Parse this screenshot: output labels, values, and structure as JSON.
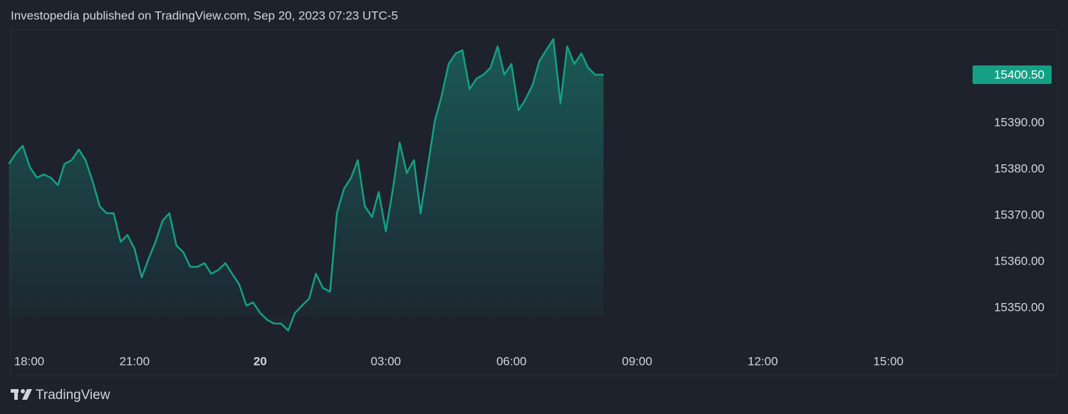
{
  "chart_data": {
    "type": "area",
    "title": "Investopedia published on TradingView.com, Sep 20, 2023 07:23 UTC-5",
    "brand": "TradingView",
    "x": [
      18,
      18.17,
      18.33,
      18.5,
      18.67,
      18.83,
      19,
      19.17,
      19.33,
      19.5,
      19.67,
      19.83,
      20,
      20.17,
      20.33,
      20.5,
      20.67,
      20.83,
      21,
      21.17,
      21.33,
      21.5,
      21.67,
      21.83,
      22,
      22.17,
      22.33,
      22.5,
      22.67,
      22.83,
      23,
      23.17,
      23.33,
      23.5,
      23.67,
      23.83,
      24,
      24.17,
      24.33,
      24.5,
      24.67,
      24.83,
      25,
      25.17,
      25.33,
      25.5,
      25.67,
      25.83,
      26,
      26.17,
      26.33,
      26.5,
      26.67,
      26.83,
      27,
      27.17,
      27.33,
      27.5,
      27.67,
      27.83,
      28,
      28.17,
      28.33,
      28.5,
      28.67,
      28.83,
      29,
      29.17,
      29.33,
      29.5,
      29.67,
      29.83,
      30,
      30.17,
      30.33,
      30.5,
      30.67,
      30.83,
      31,
      31.17,
      31.33,
      31.5,
      31.67,
      31.83,
      32,
      32.2
    ],
    "series": [
      {
        "color": "#14a085",
        "values": [
          15381.2,
          15383.5,
          15385.1,
          15380.5,
          15378.2,
          15378.9,
          15378.2,
          15376.6,
          15381.2,
          15382.0,
          15384.3,
          15382.0,
          15377.4,
          15372.0,
          15370.5,
          15370.5,
          15364.3,
          15365.8,
          15362.8,
          15356.6,
          15360.5,
          15364.3,
          15368.9,
          15370.5,
          15363.5,
          15362.0,
          15358.9,
          15358.9,
          15359.7,
          15357.4,
          15358.2,
          15359.7,
          15357.4,
          15355.1,
          15350.5,
          15351.2,
          15348.9,
          15347.4,
          15346.6,
          15346.6,
          15345.1,
          15348.9,
          15350.5,
          15352.0,
          15357.4,
          15354.3,
          15353.5,
          15370.5,
          15375.8,
          15378.2,
          15382.0,
          15372.0,
          15369.7,
          15375.1,
          15366.6,
          15375.8,
          15385.8,
          15379.2,
          15382.0,
          15370.5,
          15380.5,
          15390.5,
          15395.8,
          15402.8,
          15405.1,
          15405.8,
          15397.4,
          15399.7,
          15400.5,
          15402.0,
          15406.6,
          15400.5,
          15402.8,
          15392.8,
          15395.1,
          15398.2,
          15403.5,
          15405.8,
          15408.2,
          15394.3,
          15406.6,
          15402.8,
          15405.1,
          15402.0,
          15400.5,
          15400.5
        ]
      }
    ],
    "last_price": {
      "value": 15400.5,
      "label": "15400.50"
    },
    "xlim": [
      18,
      43
    ],
    "xticks": [
      {
        "value": 18,
        "label": "18:00"
      },
      {
        "value": 21,
        "label": "21:00"
      },
      {
        "value": 24,
        "label": "20"
      },
      {
        "value": 27,
        "label": "03:00"
      },
      {
        "value": 30,
        "label": "06:00"
      },
      {
        "value": 33,
        "label": "09:00"
      },
      {
        "value": 36,
        "label": "12:00"
      },
      {
        "value": 39,
        "label": "15:00"
      }
    ],
    "ylim": [
      15341.2,
      15410.2
    ],
    "yticks": [
      {
        "value": 15350,
        "label": "15350.00"
      },
      {
        "value": 15360,
        "label": "15360.00"
      },
      {
        "value": 15370,
        "label": "15370.00"
      },
      {
        "value": 15380,
        "label": "15380.00"
      },
      {
        "value": 15390,
        "label": "15390.00"
      }
    ]
  }
}
